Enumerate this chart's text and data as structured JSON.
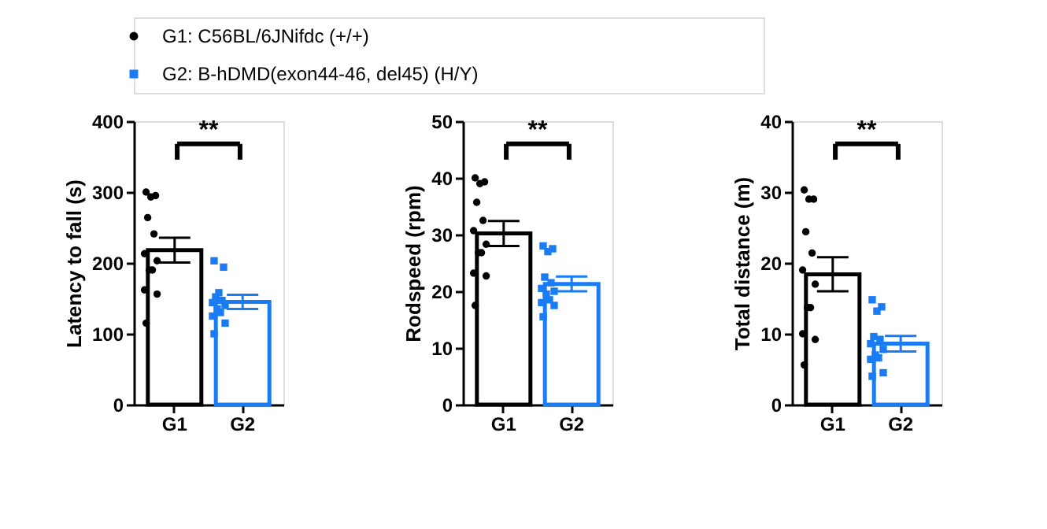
{
  "chart_data": [
    {
      "type": "bar",
      "categories": [
        "G1",
        "G2"
      ],
      "ylabel": "Latency to fall (s)",
      "ylim": [
        0,
        400
      ],
      "yticks": [
        0,
        100,
        200,
        300,
        400
      ],
      "grid": false,
      "legend": "top",
      "annotations": [
        "**"
      ],
      "series": [
        {
          "type": "bar",
          "colors": [
            "#000000",
            "#1a7cf5"
          ],
          "values": [
            218,
            145
          ],
          "errors": [
            17.5,
            10
          ]
        },
        {
          "type": "scatter",
          "name": "G1: C56BL/6JNifdc (+/+)",
          "color": "#000000",
          "marker": "circle",
          "x": [
            "G1",
            "G1",
            "G1",
            "G1",
            "G1",
            "G1",
            "G1",
            "G1",
            "G1",
            "G1",
            "G1",
            "G1"
          ],
          "values": [
            300,
            295,
            293,
            264,
            241,
            213,
            203,
            190,
            190,
            162,
            156,
            115
          ]
        },
        {
          "type": "scatter",
          "name": "G2: B-hDMD(exon44-46, del45) (H/Y)",
          "color": "#1a7cf5",
          "marker": "square",
          "x": [
            "G2",
            "G2",
            "G2",
            "G2",
            "G2",
            "G2",
            "G2",
            "G2",
            "G2",
            "G2",
            "G2",
            "G2"
          ],
          "values": [
            203,
            194,
            158,
            152,
            147,
            144,
            140,
            135,
            130,
            125,
            115,
            100
          ]
        }
      ]
    },
    {
      "type": "bar",
      "categories": [
        "G1",
        "G2"
      ],
      "ylabel": "Rodspeed (rpm)",
      "ylim": [
        0,
        50
      ],
      "yticks": [
        0,
        10,
        20,
        30,
        40,
        50
      ],
      "grid": false,
      "annotations": [
        "**"
      ],
      "series": [
        {
          "type": "bar",
          "colors": [
            "#000000",
            "#1a7cf5"
          ],
          "values": [
            30.2,
            21.3
          ],
          "errors": [
            2.2,
            1.3
          ]
        },
        {
          "type": "scatter",
          "color": "#000000",
          "marker": "circle",
          "x": [
            "G1",
            "G1",
            "G1",
            "G1",
            "G1",
            "G1",
            "G1",
            "G1",
            "G1",
            "G1",
            "G1",
            "G1"
          ],
          "values": [
            40,
            39.3,
            39,
            35.7,
            32.5,
            30.7,
            28.3,
            26.8,
            26.8,
            23.2,
            22.7,
            17.5
          ]
        },
        {
          "type": "scatter",
          "color": "#1a7cf5",
          "marker": "square",
          "x": [
            "G2",
            "G2",
            "G2",
            "G2",
            "G2",
            "G2",
            "G2",
            "G2",
            "G2",
            "G2",
            "G2",
            "G2"
          ],
          "values": [
            28,
            27.5,
            27,
            22.5,
            21.5,
            20.5,
            20,
            19.5,
            18.5,
            18,
            17.5,
            15.5
          ]
        }
      ]
    },
    {
      "type": "bar",
      "categories": [
        "G1",
        "G2"
      ],
      "ylabel": "Total distance (m)",
      "ylim": [
        0,
        40
      ],
      "yticks": [
        0,
        10,
        20,
        30,
        40
      ],
      "grid": false,
      "annotations": [
        "**"
      ],
      "series": [
        {
          "type": "bar",
          "colors": [
            "#000000",
            "#1a7cf5"
          ],
          "values": [
            18.4,
            8.6
          ],
          "errors": [
            2.4,
            1.1
          ]
        },
        {
          "type": "scatter",
          "color": "#000000",
          "marker": "circle",
          "x": [
            "G1",
            "G1",
            "G1",
            "G1",
            "G1",
            "G1",
            "G1",
            "G1",
            "G1",
            "G1",
            "G1",
            "G1"
          ],
          "values": [
            30.3,
            29,
            29,
            24.4,
            21.4,
            19,
            17,
            13.7,
            13.7,
            10,
            9.2,
            5.6
          ]
        },
        {
          "type": "scatter",
          "color": "#1a7cf5",
          "marker": "square",
          "x": [
            "G2",
            "G2",
            "G2",
            "G2",
            "G2",
            "G2",
            "G2",
            "G2",
            "G2",
            "G2",
            "G2",
            "G2"
          ],
          "values": [
            14.8,
            13.8,
            13.2,
            9.6,
            9.2,
            8.6,
            7.8,
            7,
            6.6,
            6.4,
            4.5,
            4
          ]
        }
      ]
    }
  ]
}
